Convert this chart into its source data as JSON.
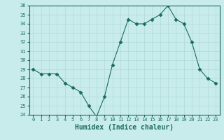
{
  "x": [
    0,
    1,
    2,
    3,
    4,
    5,
    6,
    7,
    8,
    9,
    10,
    11,
    12,
    13,
    14,
    15,
    16,
    17,
    18,
    19,
    20,
    21,
    22,
    23
  ],
  "y": [
    29,
    28.5,
    28.5,
    28.5,
    27.5,
    27,
    26.5,
    25,
    23.8,
    26,
    29.5,
    32,
    34.5,
    34,
    34,
    34.5,
    35,
    36,
    34.5,
    34,
    32,
    29,
    28,
    27.5
  ],
  "line_color": "#1a6b5a",
  "marker": "D",
  "marker_size": 2.5,
  "bg_color": "#c8ecec",
  "grid_color": "#b0d8d8",
  "tick_color": "#1a6b5a",
  "xlabel": "Humidex (Indice chaleur)",
  "xlabel_fontsize": 7,
  "ylim": [
    24,
    36
  ],
  "xlim": [
    -0.5,
    23.5
  ],
  "yticks": [
    24,
    25,
    26,
    27,
    28,
    29,
    30,
    31,
    32,
    33,
    34,
    35,
    36
  ],
  "xticks": [
    0,
    1,
    2,
    3,
    4,
    5,
    6,
    7,
    8,
    9,
    10,
    11,
    12,
    13,
    14,
    15,
    16,
    17,
    18,
    19,
    20,
    21,
    22,
    23
  ]
}
